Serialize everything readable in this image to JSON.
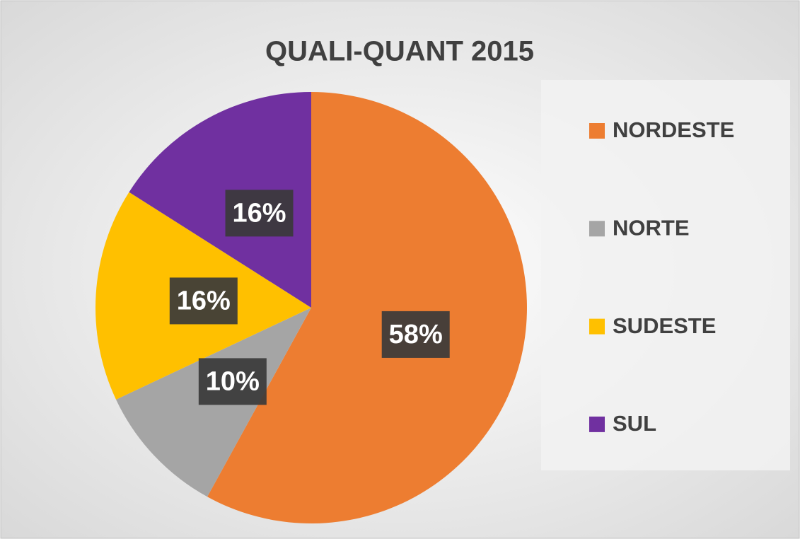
{
  "chart_data": {
    "type": "pie",
    "title": "QUALI-QUANT 2015",
    "categories": [
      "NORDESTE",
      "NORTE",
      "SUDESTE",
      "SUL"
    ],
    "values": [
      58,
      10,
      16,
      16
    ],
    "value_labels": [
      "58%",
      "10%",
      "16%",
      "16%"
    ],
    "colors": [
      "#ED7D31",
      "#A5A5A5",
      "#FFC000",
      "#7030A0"
    ],
    "legend": "right"
  }
}
